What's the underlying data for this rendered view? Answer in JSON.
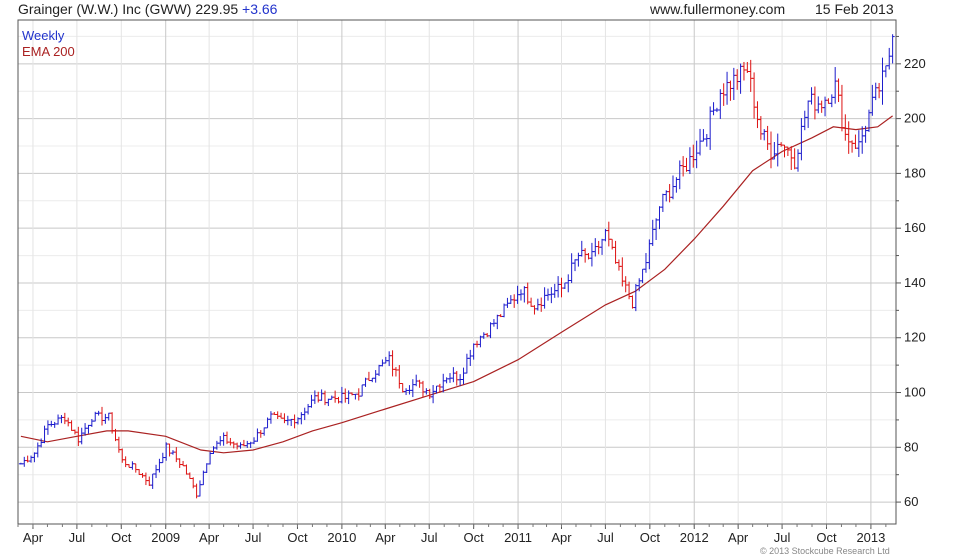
{
  "header": {
    "title": "Grainger (W.W.) Inc (GWW) 229.95",
    "change": "+3.66",
    "site": "www.fullermoney.com",
    "date": "15 Feb 2013"
  },
  "legend": {
    "weekly": "Weekly",
    "ema": "EMA 200"
  },
  "copyright": "© 2013 Stockcube Research Ltd",
  "colors": {
    "up": "#1a1acc",
    "down": "#dd1111",
    "ema": "#aa2222",
    "grid": "#d4d4d4"
  },
  "chart_data": {
    "type": "line",
    "title": "Grainger (W.W.) Inc (GWW) 229.95 +3.66",
    "xlabel": "",
    "ylabel": "",
    "ylim": [
      52,
      236
    ],
    "xlim": [
      "2008-03-01",
      "2013-02-22"
    ],
    "y_ticks": [
      60,
      80,
      100,
      120,
      140,
      160,
      180,
      200,
      220
    ],
    "x_ticks": [
      {
        "date": "2008-04-01",
        "label": "Apr"
      },
      {
        "date": "2008-07-01",
        "label": "Jul"
      },
      {
        "date": "2008-10-01",
        "label": "Oct"
      },
      {
        "date": "2009-01-01",
        "label": "2009"
      },
      {
        "date": "2009-04-01",
        "label": "Apr"
      },
      {
        "date": "2009-07-01",
        "label": "Jul"
      },
      {
        "date": "2009-10-01",
        "label": "Oct"
      },
      {
        "date": "2010-01-01",
        "label": "2010"
      },
      {
        "date": "2010-04-01",
        "label": "Apr"
      },
      {
        "date": "2010-07-01",
        "label": "Jul"
      },
      {
        "date": "2010-10-01",
        "label": "Oct"
      },
      {
        "date": "2011-01-01",
        "label": "2011"
      },
      {
        "date": "2011-04-01",
        "label": "Apr"
      },
      {
        "date": "2011-07-01",
        "label": "Jul"
      },
      {
        "date": "2011-10-01",
        "label": "Oct"
      },
      {
        "date": "2012-01-01",
        "label": "2012"
      },
      {
        "date": "2012-04-01",
        "label": "Apr"
      },
      {
        "date": "2012-07-01",
        "label": "Jul"
      },
      {
        "date": "2012-10-01",
        "label": "Oct"
      },
      {
        "date": "2013-01-01",
        "label": "2013"
      }
    ],
    "grid": true,
    "legend_position": "top-left",
    "series": [
      {
        "name": "Weekly",
        "style": "weekly-bars",
        "points": [
          {
            "x": "2008-03-07",
            "y": 74
          },
          {
            "x": "2008-04-04",
            "y": 78
          },
          {
            "x": "2008-05-02",
            "y": 88
          },
          {
            "x": "2008-06-06",
            "y": 91
          },
          {
            "x": "2008-07-04",
            "y": 83
          },
          {
            "x": "2008-08-01",
            "y": 91
          },
          {
            "x": "2008-09-05",
            "y": 91
          },
          {
            "x": "2008-10-03",
            "y": 75
          },
          {
            "x": "2008-10-31",
            "y": 72
          },
          {
            "x": "2008-11-28",
            "y": 67
          },
          {
            "x": "2009-01-02",
            "y": 80
          },
          {
            "x": "2009-02-06",
            "y": 73
          },
          {
            "x": "2009-03-06",
            "y": 63
          },
          {
            "x": "2009-04-03",
            "y": 79
          },
          {
            "x": "2009-05-01",
            "y": 83
          },
          {
            "x": "2009-06-05",
            "y": 80
          },
          {
            "x": "2009-07-03",
            "y": 83
          },
          {
            "x": "2009-08-07",
            "y": 91
          },
          {
            "x": "2009-09-04",
            "y": 89
          },
          {
            "x": "2009-10-02",
            "y": 91
          },
          {
            "x": "2009-11-06",
            "y": 98
          },
          {
            "x": "2009-12-04",
            "y": 98
          },
          {
            "x": "2010-01-08",
            "y": 98
          },
          {
            "x": "2010-02-05",
            "y": 100
          },
          {
            "x": "2010-03-05",
            "y": 107
          },
          {
            "x": "2010-04-09",
            "y": 112
          },
          {
            "x": "2010-05-07",
            "y": 102
          },
          {
            "x": "2010-06-04",
            "y": 103
          },
          {
            "x": "2010-07-02",
            "y": 100
          },
          {
            "x": "2010-08-06",
            "y": 106
          },
          {
            "x": "2010-09-03",
            "y": 106
          },
          {
            "x": "2010-10-01",
            "y": 118
          },
          {
            "x": "2010-11-05",
            "y": 124
          },
          {
            "x": "2010-12-03",
            "y": 130
          },
          {
            "x": "2011-01-07",
            "y": 138
          },
          {
            "x": "2011-02-04",
            "y": 132
          },
          {
            "x": "2011-03-04",
            "y": 136
          },
          {
            "x": "2011-04-01",
            "y": 138
          },
          {
            "x": "2011-05-06",
            "y": 150
          },
          {
            "x": "2011-06-03",
            "y": 149
          },
          {
            "x": "2011-07-01",
            "y": 158
          },
          {
            "x": "2011-08-05",
            "y": 140
          },
          {
            "x": "2011-08-26",
            "y": 133
          },
          {
            "x": "2011-09-23",
            "y": 148
          },
          {
            "x": "2011-10-21",
            "y": 168
          },
          {
            "x": "2011-11-25",
            "y": 178
          },
          {
            "x": "2011-12-23",
            "y": 185
          },
          {
            "x": "2012-01-27",
            "y": 196
          },
          {
            "x": "2012-02-24",
            "y": 210
          },
          {
            "x": "2012-03-23",
            "y": 214
          },
          {
            "x": "2012-04-20",
            "y": 218
          },
          {
            "x": "2012-05-18",
            "y": 195
          },
          {
            "x": "2012-06-08",
            "y": 188
          },
          {
            "x": "2012-06-29",
            "y": 192
          },
          {
            "x": "2012-07-27",
            "y": 185
          },
          {
            "x": "2012-08-24",
            "y": 206
          },
          {
            "x": "2012-09-21",
            "y": 206
          },
          {
            "x": "2012-10-19",
            "y": 212
          },
          {
            "x": "2012-11-09",
            "y": 194
          },
          {
            "x": "2012-12-07",
            "y": 190
          },
          {
            "x": "2013-01-04",
            "y": 205
          },
          {
            "x": "2013-02-01",
            "y": 217
          },
          {
            "x": "2013-02-15",
            "y": 229.95
          }
        ]
      },
      {
        "name": "EMA 200",
        "points": [
          {
            "x": "2008-03-07",
            "y": 84
          },
          {
            "x": "2008-05-01",
            "y": 82
          },
          {
            "x": "2008-07-01",
            "y": 84
          },
          {
            "x": "2008-09-01",
            "y": 86
          },
          {
            "x": "2008-10-15",
            "y": 86
          },
          {
            "x": "2009-01-01",
            "y": 84
          },
          {
            "x": "2009-03-15",
            "y": 79
          },
          {
            "x": "2009-05-01",
            "y": 78
          },
          {
            "x": "2009-07-01",
            "y": 79
          },
          {
            "x": "2009-09-01",
            "y": 82
          },
          {
            "x": "2009-11-01",
            "y": 86
          },
          {
            "x": "2010-01-01",
            "y": 89
          },
          {
            "x": "2010-04-01",
            "y": 94
          },
          {
            "x": "2010-07-01",
            "y": 99
          },
          {
            "x": "2010-10-01",
            "y": 104
          },
          {
            "x": "2011-01-01",
            "y": 112
          },
          {
            "x": "2011-04-01",
            "y": 122
          },
          {
            "x": "2011-07-01",
            "y": 132
          },
          {
            "x": "2011-09-01",
            "y": 137
          },
          {
            "x": "2011-11-01",
            "y": 145
          },
          {
            "x": "2012-01-01",
            "y": 156
          },
          {
            "x": "2012-03-01",
            "y": 168
          },
          {
            "x": "2012-05-01",
            "y": 181
          },
          {
            "x": "2012-07-01",
            "y": 188
          },
          {
            "x": "2012-09-01",
            "y": 193
          },
          {
            "x": "2012-10-15",
            "y": 197
          },
          {
            "x": "2012-12-01",
            "y": 196
          },
          {
            "x": "2013-01-15",
            "y": 197
          },
          {
            "x": "2013-02-15",
            "y": 201
          }
        ]
      }
    ]
  }
}
